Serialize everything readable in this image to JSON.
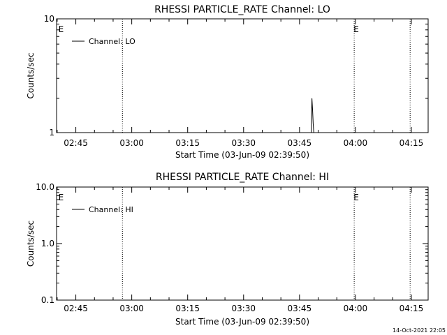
{
  "footer_timestamp": "14-Oct-2021 22:05",
  "chart_data": [
    {
      "type": "line",
      "title": "RHESSI PARTICLE_RATE Channel: LO",
      "xlabel": "Start Time (03-Jun-09 02:39:50)",
      "ylabel": "Counts/sec",
      "yscale": "log",
      "ylim": [
        1,
        10
      ],
      "yticks": [
        1,
        10
      ],
      "ytick_labels": [
        "1",
        "10"
      ],
      "xtick_labels": [
        "02:45",
        "03:00",
        "03:15",
        "03:30",
        "03:45",
        "04:00",
        "04:15"
      ],
      "xlim": [
        "02:39:50",
        "04:19:30"
      ],
      "grid": false,
      "legend": "top-left",
      "series": [
        {
          "name": "Channel: LO",
          "x": [
            "03:48:10",
            "03:48:20",
            "03:48:30",
            "03:48:40",
            "03:48:50",
            "03:49:00"
          ],
          "y": [
            1,
            2,
            1.6,
            1.2,
            1,
            1
          ]
        }
      ],
      "markers": [
        {
          "label": "E",
          "x": "02:40:20"
        },
        {
          "label": "E",
          "x": "03:59:30"
        }
      ],
      "dotted_lines": [
        "02:57:30",
        "03:59:40",
        "04:14:40"
      ]
    },
    {
      "type": "line",
      "title": "RHESSI PARTICLE_RATE Channel: HI",
      "xlabel": "Start Time (03-Jun-09 02:39:50)",
      "ylabel": "Counts/sec",
      "yscale": "log",
      "ylim": [
        0.1,
        10
      ],
      "yticks": [
        0.1,
        1,
        10
      ],
      "ytick_labels": [
        "0.1",
        "1.0",
        "10.0"
      ],
      "xtick_labels": [
        "02:45",
        "03:00",
        "03:15",
        "03:30",
        "03:45",
        "04:00",
        "04:15"
      ],
      "xlim": [
        "02:39:50",
        "04:19:30"
      ],
      "grid": false,
      "legend": "top-left",
      "series": [
        {
          "name": "Channel: HI",
          "x": [],
          "y": []
        }
      ],
      "markers": [
        {
          "label": "E",
          "x": "02:40:20"
        },
        {
          "label": "E",
          "x": "03:59:30"
        }
      ],
      "dotted_lines": [
        "02:57:30",
        "03:59:40",
        "04:14:40"
      ]
    }
  ]
}
